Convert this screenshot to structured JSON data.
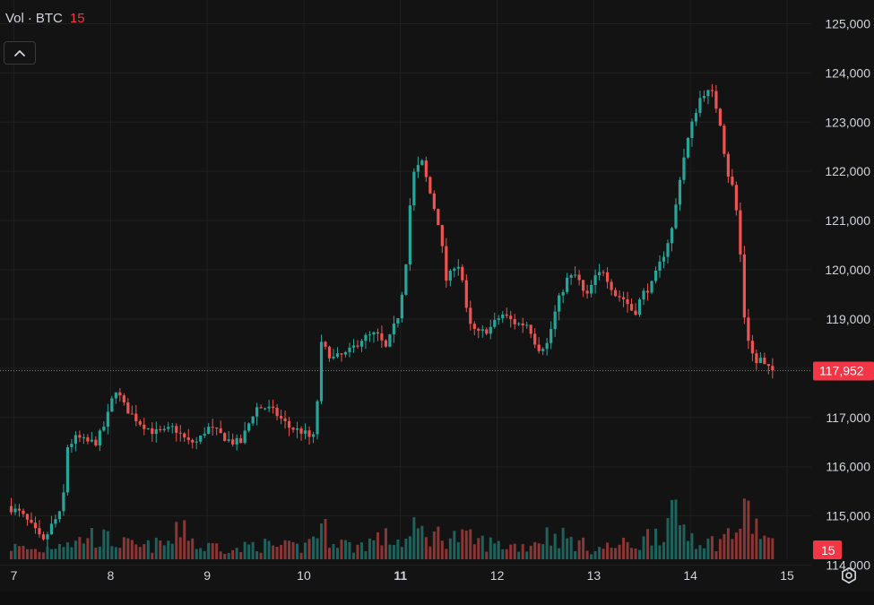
{
  "volume_legend": {
    "label": "Vol",
    "separator": "·",
    "symbol": "BTC",
    "value": "15"
  },
  "price_tag": "117,952",
  "volume_tag": "15",
  "colors": {
    "up": "#26a69a",
    "down": "#ef5350",
    "background": "#131313",
    "grid": "#202020",
    "axis_text": "#d1d4dc",
    "price_line": "#ef5350"
  },
  "icons": {
    "collapse": "chevron-up-icon",
    "settings": "settings-icon"
  },
  "chart_data": {
    "type": "candlestick",
    "y_axis_ticks": [
      "125,000",
      "124,000",
      "123,000",
      "122,000",
      "121,000",
      "120,000",
      "119,000",
      "118,000",
      "117,000",
      "116,000",
      "115,000",
      "114,000"
    ],
    "x_axis_ticks": [
      {
        "label": "7",
        "bold": false
      },
      {
        "label": "8",
        "bold": false
      },
      {
        "label": "9",
        "bold": false
      },
      {
        "label": "10",
        "bold": false
      },
      {
        "label": "11",
        "bold": true
      },
      {
        "label": "12",
        "bold": false
      },
      {
        "label": "13",
        "bold": false
      },
      {
        "label": "14",
        "bold": false
      },
      {
        "label": "15",
        "bold": false
      }
    ],
    "ylim": [
      113500,
      125300
    ],
    "xlim": [
      6.93,
      15.0
    ],
    "last_price": 117952,
    "grid": true,
    "price_anchors": [
      [
        6.93,
        115200
      ],
      [
        7.07,
        115050
      ],
      [
        7.2,
        114750
      ],
      [
        7.3,
        114450
      ],
      [
        7.4,
        114850
      ],
      [
        7.5,
        115100
      ],
      [
        7.55,
        116400
      ],
      [
        7.65,
        116600
      ],
      [
        7.75,
        116500
      ],
      [
        7.85,
        116500
      ],
      [
        7.95,
        116900
      ],
      [
        8.05,
        117600
      ],
      [
        8.15,
        117200
      ],
      [
        8.3,
        116900
      ],
      [
        8.45,
        116700
      ],
      [
        8.55,
        116700
      ],
      [
        8.65,
        116800
      ],
      [
        8.8,
        116500
      ],
      [
        8.9,
        116500
      ],
      [
        9.0,
        116800
      ],
      [
        9.1,
        116700
      ],
      [
        9.25,
        116500
      ],
      [
        9.35,
        116500
      ],
      [
        9.5,
        117200
      ],
      [
        9.62,
        117200
      ],
      [
        9.7,
        117100
      ],
      [
        9.85,
        116800
      ],
      [
        10.0,
        116700
      ],
      [
        10.05,
        116600
      ],
      [
        10.12,
        116600
      ],
      [
        10.17,
        118500
      ],
      [
        10.3,
        118200
      ],
      [
        10.45,
        118300
      ],
      [
        10.6,
        118600
      ],
      [
        10.75,
        118700
      ],
      [
        10.85,
        118400
      ],
      [
        10.98,
        119100
      ],
      [
        11.05,
        120000
      ],
      [
        11.12,
        121900
      ],
      [
        11.22,
        122200
      ],
      [
        11.3,
        121600
      ],
      [
        11.4,
        120900
      ],
      [
        11.48,
        119700
      ],
      [
        11.55,
        120100
      ],
      [
        11.62,
        120100
      ],
      [
        11.7,
        118900
      ],
      [
        11.8,
        118700
      ],
      [
        11.92,
        118800
      ],
      [
        12.05,
        119100
      ],
      [
        12.2,
        118900
      ],
      [
        12.32,
        118900
      ],
      [
        12.42,
        118400
      ],
      [
        12.52,
        118500
      ],
      [
        12.62,
        119300
      ],
      [
        12.72,
        119800
      ],
      [
        12.82,
        119900
      ],
      [
        12.92,
        119400
      ],
      [
        13.0,
        119800
      ],
      [
        13.1,
        120000
      ],
      [
        13.22,
        119500
      ],
      [
        13.32,
        119400
      ],
      [
        13.42,
        119100
      ],
      [
        13.5,
        119500
      ],
      [
        13.6,
        119700
      ],
      [
        13.72,
        120300
      ],
      [
        13.82,
        120900
      ],
      [
        13.9,
        122000
      ],
      [
        13.98,
        122700
      ],
      [
        14.05,
        123200
      ],
      [
        14.12,
        123600
      ],
      [
        14.22,
        123600
      ],
      [
        14.3,
        123100
      ],
      [
        14.38,
        122000
      ],
      [
        14.45,
        121600
      ],
      [
        14.5,
        120800
      ],
      [
        14.56,
        119000
      ],
      [
        14.62,
        118400
      ],
      [
        14.68,
        118100
      ],
      [
        14.72,
        118200
      ],
      [
        14.78,
        118000
      ],
      [
        14.85,
        117950
      ]
    ],
    "volume_anchors": [
      [
        6.93,
        18
      ],
      [
        7.3,
        12
      ],
      [
        7.5,
        28
      ],
      [
        7.65,
        22
      ],
      [
        7.75,
        34
      ],
      [
        8.0,
        26
      ],
      [
        8.3,
        16
      ],
      [
        8.65,
        24
      ],
      [
        8.75,
        55
      ],
      [
        8.9,
        14
      ],
      [
        9.1,
        20
      ],
      [
        9.3,
        12
      ],
      [
        9.5,
        22
      ],
      [
        9.65,
        18
      ],
      [
        10.0,
        16
      ],
      [
        10.15,
        44
      ],
      [
        10.5,
        16
      ],
      [
        10.8,
        30
      ],
      [
        11.05,
        24
      ],
      [
        11.15,
        40
      ],
      [
        11.3,
        34
      ],
      [
        11.5,
        32
      ],
      [
        11.7,
        28
      ],
      [
        12.0,
        20
      ],
      [
        12.3,
        18
      ],
      [
        12.5,
        34
      ],
      [
        12.65,
        32
      ],
      [
        13.0,
        14
      ],
      [
        13.3,
        20
      ],
      [
        13.5,
        22
      ],
      [
        13.6,
        40
      ],
      [
        13.75,
        46
      ],
      [
        13.85,
        58
      ],
      [
        14.0,
        36
      ],
      [
        14.2,
        22
      ],
      [
        14.35,
        30
      ],
      [
        14.5,
        44
      ],
      [
        14.6,
        66
      ],
      [
        14.7,
        40
      ],
      [
        14.85,
        20
      ]
    ]
  }
}
